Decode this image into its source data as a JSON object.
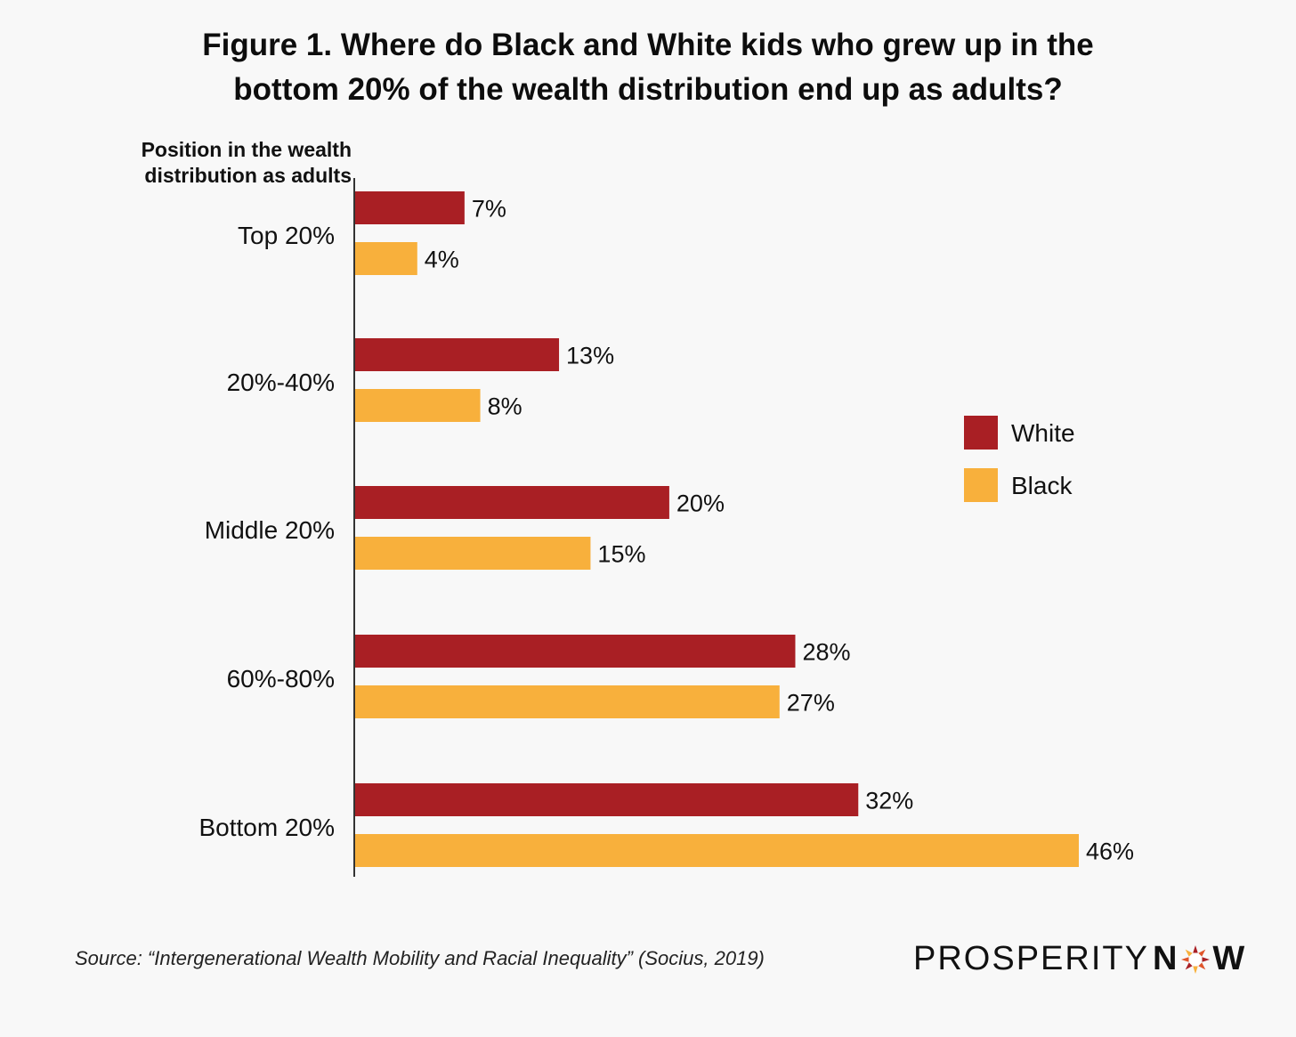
{
  "title_line1": "Figure 1. Where do Black and White kids who grew up in the",
  "title_line2": "bottom 20% of the wealth distribution end up as adults?",
  "chart_data": {
    "type": "bar",
    "orientation": "horizontal",
    "ylabel_line1": "Position in the wealth",
    "ylabel_line2": "distribution as adults",
    "categories": [
      "Top 20%",
      "20%-40%",
      "Middle 20%",
      "60%-80%",
      "Bottom 20%"
    ],
    "series": [
      {
        "name": "White",
        "color": "#a91f24",
        "values": [
          7,
          13,
          20,
          28,
          32
        ],
        "labels": [
          "7%",
          "13%",
          "20%",
          "28%",
          "32%"
        ]
      },
      {
        "name": "Black",
        "color": "#f8b03c",
        "values": [
          4,
          8,
          15,
          27,
          46
        ],
        "labels": [
          "4%",
          "8%",
          "15%",
          "27%",
          "46%"
        ]
      }
    ],
    "xlim": [
      0,
      46
    ],
    "legend_position": "right",
    "grid": false
  },
  "source": "Source: “Intergenerational Wealth Mobility and Racial Inequality” (Socius, 2019)",
  "logo": {
    "part1": "PROSPERITY",
    "part2_a": "N",
    "part2_b": "W",
    "icon": "sun-star-icon"
  }
}
